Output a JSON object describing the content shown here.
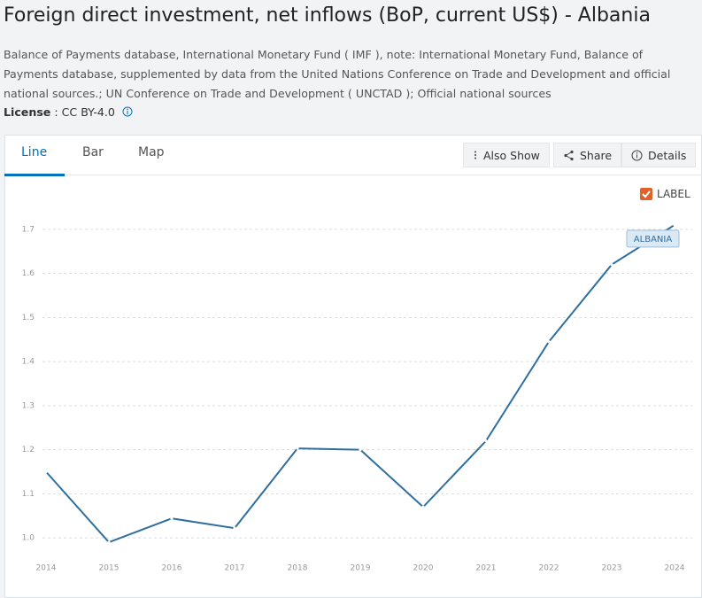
{
  "page": {
    "title": "Foreign direct investment, net inflows (BoP, current US$) - Albania",
    "source": "Balance of Payments database, International Monetary Fund ( IMF ), note: International Monetary Fund, Balance of Payments database, supplemented by data from the United Nations Conference on Trade and Development and official national sources.; UN Conference on Trade and Development ( UNCTAD ); Official national sources",
    "license_label": "License",
    "license_value": ": CC BY-4.0",
    "tabs": [
      "Line",
      "Bar",
      "Map"
    ],
    "buttons": [
      "Also Show",
      "Share",
      "Details"
    ],
    "checkbox_label": "LABEL"
  },
  "chart_data": {
    "type": "line",
    "categories": [
      "2014",
      "2015",
      "2016",
      "2017",
      "2018",
      "2019",
      "2020",
      "2021",
      "2022",
      "2023",
      "2024"
    ],
    "series": [
      {
        "name": "ALBANIA",
        "color": "#2f6f9f",
        "values": [
          1.15,
          0.99,
          1.044,
          1.022,
          1.203,
          1.2,
          1.07,
          1.22,
          1.445,
          1.62,
          1.71
        ]
      }
    ],
    "ylim": [
      0.96,
      1.74
    ],
    "yticks": [
      {
        "value": 1,
        "label": "1.0"
      },
      1.1,
      1.2,
      1.3,
      1.4,
      1.5,
      1.6,
      1.7
    ],
    "grid": true
  }
}
